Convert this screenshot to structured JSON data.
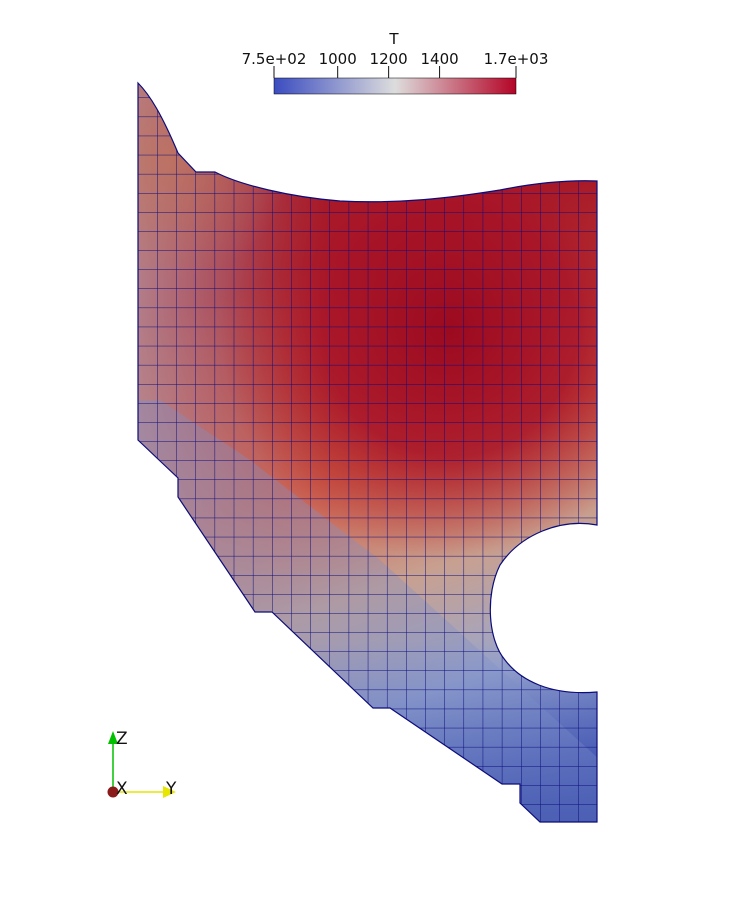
{
  "colorbar": {
    "title": "T",
    "range": [
      750,
      1700
    ],
    "ticks": [
      {
        "value": 750,
        "label": "7.5e+02"
      },
      {
        "value": 1000,
        "label": "1000"
      },
      {
        "value": 1200,
        "label": "1200"
      },
      {
        "value": 1400,
        "label": "1400"
      },
      {
        "value": 1700,
        "label": "1.7e+03"
      }
    ],
    "colormap": [
      "#3b4cc0",
      "#dddddd",
      "#b40426"
    ]
  },
  "axes": {
    "x_label": "X",
    "y_label": "Y",
    "z_label": "Z",
    "colors": {
      "x": "#8b1a1a",
      "y": "#e6e600",
      "z": "#00c000"
    }
  },
  "mesh": {
    "edge_color": "#0c0c7a",
    "background": "#ffffff"
  }
}
